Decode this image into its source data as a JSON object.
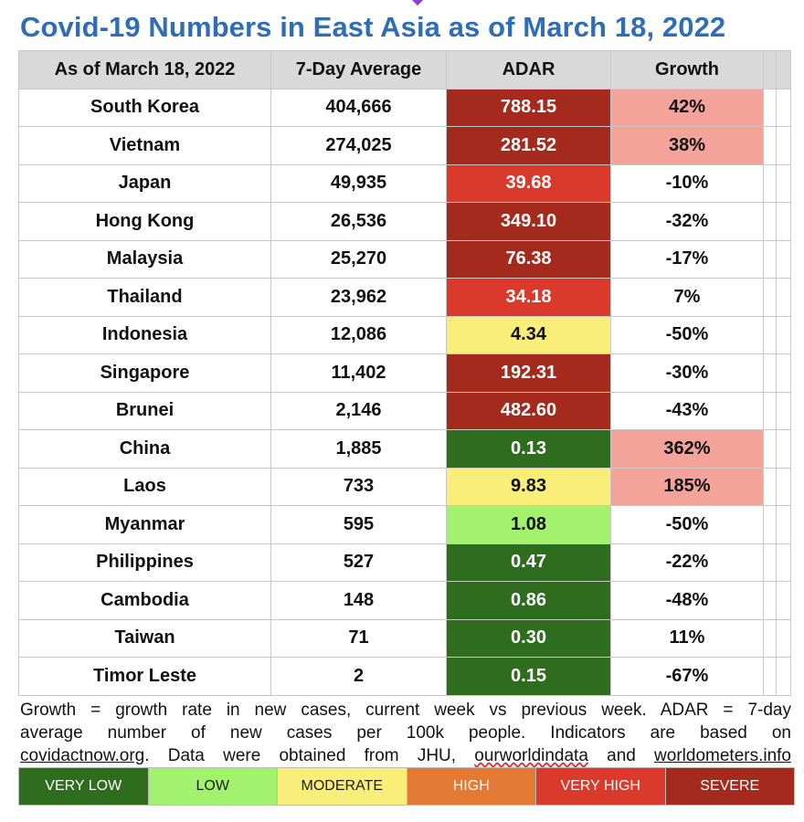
{
  "title": "Covid-19 Numbers in East Asia as of March 18, 2022",
  "colors": {
    "severe": "#a52a1e",
    "very_high": "#d93a2b",
    "high": "#e27a33",
    "moderate": "#f9ee79",
    "low": "#a3f26e",
    "very_low": "#2f6d1e",
    "growth_pink": "#f4a39a",
    "header_bg": "#d9d9d9",
    "title_blue": "#2f6db5"
  },
  "chart_data": {
    "type": "table",
    "title": "Covid-19 Numbers in East Asia as of March 18, 2022",
    "columns": [
      "As of March 18, 2022",
      "7-Day Average",
      "ADAR",
      "Growth"
    ],
    "rows": [
      {
        "country": "South Korea",
        "avg": "404,666",
        "adar": "788.15",
        "growth": "42%",
        "adar_level": "severe",
        "growth_hl": true
      },
      {
        "country": "Vietnam",
        "avg": "274,025",
        "adar": "281.52",
        "growth": "38%",
        "adar_level": "severe",
        "growth_hl": true
      },
      {
        "country": "Japan",
        "avg": "49,935",
        "adar": "39.68",
        "growth": "-10%",
        "adar_level": "very_high",
        "growth_hl": false
      },
      {
        "country": "Hong Kong",
        "avg": "26,536",
        "adar": "349.10",
        "growth": "-32%",
        "adar_level": "severe",
        "growth_hl": false
      },
      {
        "country": "Malaysia",
        "avg": "25,270",
        "adar": "76.38",
        "growth": "-17%",
        "adar_level": "severe",
        "growth_hl": false
      },
      {
        "country": "Thailand",
        "avg": "23,962",
        "adar": "34.18",
        "growth": "7%",
        "adar_level": "very_high",
        "growth_hl": false
      },
      {
        "country": "Indonesia",
        "avg": "12,086",
        "adar": "4.34",
        "growth": "-50%",
        "adar_level": "moderate",
        "growth_hl": false
      },
      {
        "country": "Singapore",
        "avg": "11,402",
        "adar": "192.31",
        "growth": "-30%",
        "adar_level": "severe",
        "growth_hl": false
      },
      {
        "country": "Brunei",
        "avg": "2,146",
        "adar": "482.60",
        "growth": "-43%",
        "adar_level": "severe",
        "growth_hl": false
      },
      {
        "country": "China",
        "avg": "1,885",
        "adar": "0.13",
        "growth": "362%",
        "adar_level": "very_low",
        "growth_hl": true
      },
      {
        "country": "Laos",
        "avg": "733",
        "adar": "9.83",
        "growth": "185%",
        "adar_level": "moderate",
        "growth_hl": true
      },
      {
        "country": "Myanmar",
        "avg": "595",
        "adar": "1.08",
        "growth": "-50%",
        "adar_level": "low",
        "growth_hl": false
      },
      {
        "country": "Philippines",
        "avg": "527",
        "adar": "0.47",
        "growth": "-22%",
        "adar_level": "very_low",
        "growth_hl": false
      },
      {
        "country": "Cambodia",
        "avg": "148",
        "adar": "0.86",
        "growth": "-48%",
        "adar_level": "very_low",
        "growth_hl": false
      },
      {
        "country": "Taiwan",
        "avg": "71",
        "adar": "0.30",
        "growth": "11%",
        "adar_level": "very_low",
        "growth_hl": false
      },
      {
        "country": "Timor Leste",
        "avg": "2",
        "adar": "0.15",
        "growth": "-67%",
        "adar_level": "very_low",
        "growth_hl": false
      }
    ]
  },
  "footnote": {
    "line1": "Growth = growth rate in new cases, current week vs previous week. ADAR = 7-day",
    "line2": "average number of new cases per 100k people. Indicators are based on",
    "l3_link1": "covidactnow.org",
    "l3_text1": ". Data were obtained from JHU, ",
    "l3_link2": "ourworldindata",
    "l3_text2": " and ",
    "l3_link3": "worldometers.info"
  },
  "legend": [
    {
      "label": "VERY LOW",
      "level": "very_low",
      "text_color": "#ffffff"
    },
    {
      "label": "LOW",
      "level": "low",
      "text_color": "#1a1a1a"
    },
    {
      "label": "MODERATE",
      "level": "moderate",
      "text_color": "#1a1a1a"
    },
    {
      "label": "HIGH",
      "level": "high",
      "text_color": "#ffffff"
    },
    {
      "label": "VERY HIGH",
      "level": "very_high",
      "text_color": "#ffffff"
    },
    {
      "label": "SEVERE",
      "level": "severe",
      "text_color": "#ffffff"
    }
  ]
}
